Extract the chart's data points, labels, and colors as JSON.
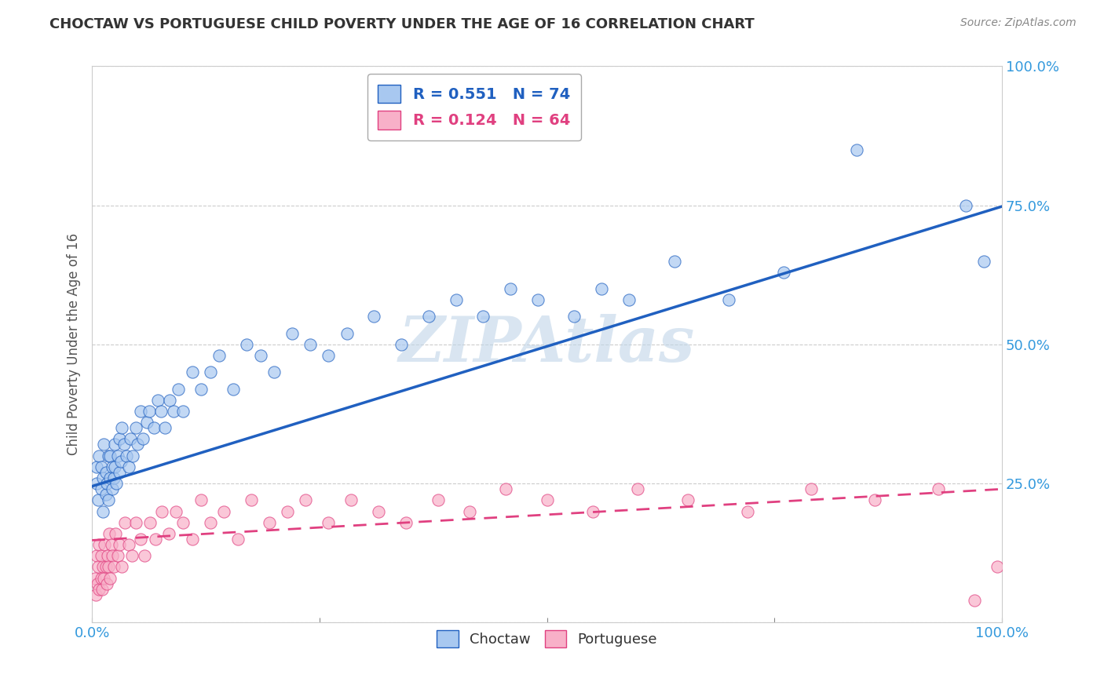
{
  "title": "CHOCTAW VS PORTUGUESE CHILD POVERTY UNDER THE AGE OF 16 CORRELATION CHART",
  "source": "Source: ZipAtlas.com",
  "ylabel": "Child Poverty Under the Age of 16",
  "choctaw_R": 0.551,
  "choctaw_N": 74,
  "portuguese_R": 0.124,
  "portuguese_N": 64,
  "choctaw_color": "#A8C8F0",
  "portuguese_color": "#F8B0C8",
  "choctaw_line_color": "#2060C0",
  "portuguese_line_color": "#E04080",
  "background_color": "#FFFFFF",
  "watermark": "ZIPAtlas",
  "watermark_color": "#C0D5E8",
  "xlim": [
    0,
    1
  ],
  "ylim": [
    0,
    1
  ],
  "choctaw_x": [
    0.005,
    0.005,
    0.007,
    0.008,
    0.01,
    0.01,
    0.012,
    0.012,
    0.013,
    0.015,
    0.015,
    0.016,
    0.018,
    0.018,
    0.02,
    0.02,
    0.022,
    0.022,
    0.024,
    0.025,
    0.025,
    0.027,
    0.028,
    0.03,
    0.03,
    0.032,
    0.033,
    0.035,
    0.038,
    0.04,
    0.042,
    0.045,
    0.048,
    0.05,
    0.053,
    0.056,
    0.06,
    0.063,
    0.068,
    0.072,
    0.076,
    0.08,
    0.085,
    0.09,
    0.095,
    0.1,
    0.11,
    0.12,
    0.13,
    0.14,
    0.155,
    0.17,
    0.185,
    0.2,
    0.22,
    0.24,
    0.26,
    0.28,
    0.31,
    0.34,
    0.37,
    0.4,
    0.43,
    0.46,
    0.49,
    0.53,
    0.56,
    0.59,
    0.64,
    0.7,
    0.76,
    0.84,
    0.96,
    0.98
  ],
  "choctaw_y": [
    0.25,
    0.28,
    0.22,
    0.3,
    0.24,
    0.28,
    0.2,
    0.26,
    0.32,
    0.23,
    0.27,
    0.25,
    0.3,
    0.22,
    0.26,
    0.3,
    0.24,
    0.28,
    0.26,
    0.32,
    0.28,
    0.25,
    0.3,
    0.27,
    0.33,
    0.29,
    0.35,
    0.32,
    0.3,
    0.28,
    0.33,
    0.3,
    0.35,
    0.32,
    0.38,
    0.33,
    0.36,
    0.38,
    0.35,
    0.4,
    0.38,
    0.35,
    0.4,
    0.38,
    0.42,
    0.38,
    0.45,
    0.42,
    0.45,
    0.48,
    0.42,
    0.5,
    0.48,
    0.45,
    0.52,
    0.5,
    0.48,
    0.52,
    0.55,
    0.5,
    0.55,
    0.58,
    0.55,
    0.6,
    0.58,
    0.55,
    0.6,
    0.58,
    0.65,
    0.58,
    0.63,
    0.85,
    0.75,
    0.65
  ],
  "portuguese_x": [
    0.003,
    0.004,
    0.005,
    0.006,
    0.007,
    0.008,
    0.008,
    0.01,
    0.01,
    0.011,
    0.012,
    0.013,
    0.014,
    0.015,
    0.016,
    0.017,
    0.018,
    0.019,
    0.02,
    0.021,
    0.022,
    0.024,
    0.026,
    0.028,
    0.03,
    0.033,
    0.036,
    0.04,
    0.044,
    0.048,
    0.053,
    0.058,
    0.064,
    0.07,
    0.077,
    0.084,
    0.092,
    0.1,
    0.11,
    0.12,
    0.13,
    0.145,
    0.16,
    0.175,
    0.195,
    0.215,
    0.235,
    0.26,
    0.285,
    0.315,
    0.345,
    0.38,
    0.415,
    0.455,
    0.5,
    0.55,
    0.6,
    0.655,
    0.72,
    0.79,
    0.86,
    0.93,
    0.97,
    0.995
  ],
  "portuguese_y": [
    0.08,
    0.05,
    0.12,
    0.07,
    0.1,
    0.06,
    0.14,
    0.08,
    0.12,
    0.06,
    0.1,
    0.08,
    0.14,
    0.1,
    0.07,
    0.12,
    0.1,
    0.16,
    0.08,
    0.14,
    0.12,
    0.1,
    0.16,
    0.12,
    0.14,
    0.1,
    0.18,
    0.14,
    0.12,
    0.18,
    0.15,
    0.12,
    0.18,
    0.15,
    0.2,
    0.16,
    0.2,
    0.18,
    0.15,
    0.22,
    0.18,
    0.2,
    0.15,
    0.22,
    0.18,
    0.2,
    0.22,
    0.18,
    0.22,
    0.2,
    0.18,
    0.22,
    0.2,
    0.24,
    0.22,
    0.2,
    0.24,
    0.22,
    0.2,
    0.24,
    0.22,
    0.24,
    0.04,
    0.1
  ]
}
